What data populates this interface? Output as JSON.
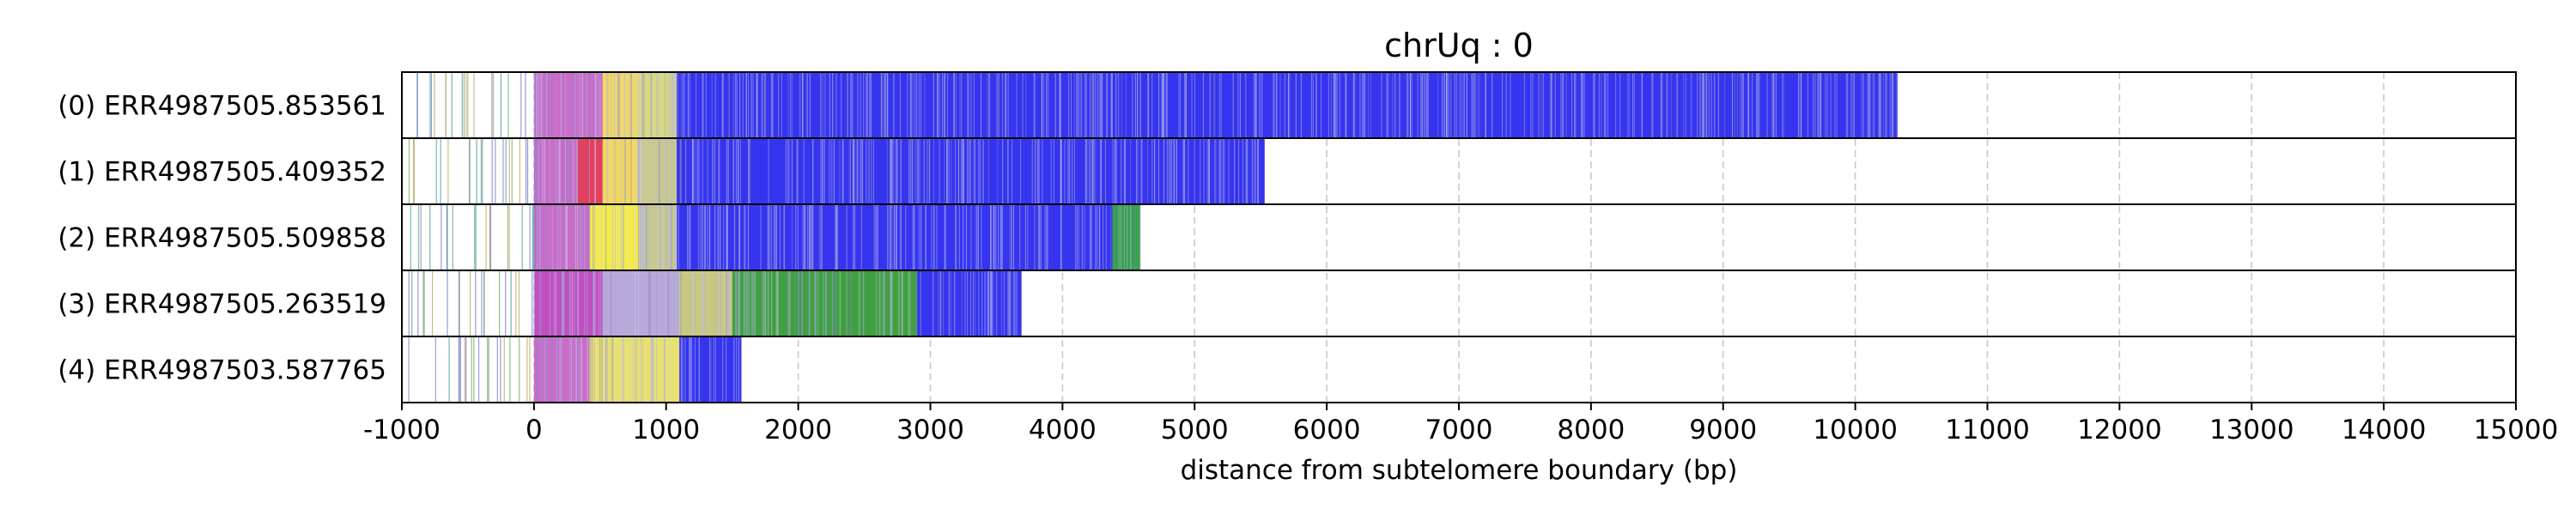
{
  "chart_data": {
    "type": "bar",
    "title": "chrUq : 0",
    "xlabel": "distance from subtelomere boundary (bp)",
    "ylabel": "",
    "xlim": [
      -1000,
      15000
    ],
    "xticks": [
      -1000,
      0,
      1000,
      2000,
      3000,
      4000,
      5000,
      6000,
      7000,
      8000,
      9000,
      10000,
      11000,
      12000,
      13000,
      14000,
      15000
    ],
    "xtick_labels": [
      "-1000",
      "0",
      "1000",
      "2000",
      "3000",
      "4000",
      "5000",
      "6000",
      "7000",
      "8000",
      "9000",
      "10000",
      "11000",
      "12000",
      "13000",
      "14000",
      "15000"
    ],
    "grid": "x-dashed",
    "legend": "none",
    "rows": [
      {
        "label": "(0) ERR4987505.853561",
        "start": -1000,
        "end": 10320,
        "segments": [
          {
            "from": -1000,
            "to": 0,
            "color": "#ffffff"
          },
          {
            "from": 0,
            "to": 520,
            "color": "#c86ec8"
          },
          {
            "from": 520,
            "to": 780,
            "color": "#f2d860"
          },
          {
            "from": 780,
            "to": 1080,
            "color": "#d8d880"
          },
          {
            "from": 1080,
            "to": 10320,
            "color": "#3535f0"
          }
        ]
      },
      {
        "label": "(1) ERR4987505.409352",
        "start": -1000,
        "end": 5530,
        "segments": [
          {
            "from": -1000,
            "to": 0,
            "color": "#ffffff"
          },
          {
            "from": 0,
            "to": 330,
            "color": "#c86ec8"
          },
          {
            "from": 330,
            "to": 520,
            "color": "#e04060"
          },
          {
            "from": 520,
            "to": 780,
            "color": "#f2d860"
          },
          {
            "from": 780,
            "to": 1080,
            "color": "#c8c890"
          },
          {
            "from": 1080,
            "to": 5530,
            "color": "#3535f0"
          }
        ]
      },
      {
        "label": "(2) ERR4987505.509858",
        "start": -1000,
        "end": 4590,
        "segments": [
          {
            "from": -1000,
            "to": 0,
            "color": "#ffffff"
          },
          {
            "from": 0,
            "to": 420,
            "color": "#c86ec8"
          },
          {
            "from": 420,
            "to": 800,
            "color": "#f2ea50"
          },
          {
            "from": 800,
            "to": 1080,
            "color": "#c8c890"
          },
          {
            "from": 1080,
            "to": 4380,
            "color": "#3535f0"
          },
          {
            "from": 4380,
            "to": 4590,
            "color": "#3aa050"
          }
        ]
      },
      {
        "label": "(3) ERR4987505.263519",
        "start": -1000,
        "end": 3690,
        "segments": [
          {
            "from": -1000,
            "to": 0,
            "color": "#ffffff"
          },
          {
            "from": 0,
            "to": 520,
            "color": "#c050c0"
          },
          {
            "from": 520,
            "to": 1100,
            "color": "#b8a8d8"
          },
          {
            "from": 1100,
            "to": 1500,
            "color": "#c8c880"
          },
          {
            "from": 1500,
            "to": 2900,
            "color": "#40a040"
          },
          {
            "from": 2900,
            "to": 3690,
            "color": "#3535f0"
          }
        ]
      },
      {
        "label": "(4) ERR4987503.587765",
        "start": -1000,
        "end": 1570,
        "segments": [
          {
            "from": -1000,
            "to": 0,
            "color": "#ffffff"
          },
          {
            "from": 0,
            "to": 420,
            "color": "#c86ec8"
          },
          {
            "from": 420,
            "to": 1100,
            "color": "#e8e070"
          },
          {
            "from": 1100,
            "to": 1570,
            "color": "#3535f0"
          }
        ]
      }
    ]
  }
}
